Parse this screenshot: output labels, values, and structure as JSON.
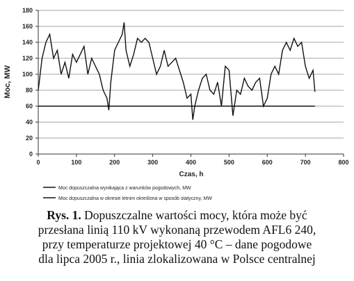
{
  "chart_data": {
    "type": "line",
    "xlabel": "Czas, h",
    "ylabel": "Moc, MW",
    "xlim": [
      0,
      800
    ],
    "xticks": [
      0,
      100,
      200,
      300,
      400,
      500,
      600,
      700,
      800
    ],
    "ylim": [
      0,
      180
    ],
    "yticks": [
      0,
      20,
      40,
      60,
      80,
      100,
      120,
      140,
      160,
      180
    ],
    "grid": true,
    "series": [
      {
        "name": "Moc dopuszczalna wynikająca z warunków pogodowych, MW",
        "color": "#111111",
        "x": [
          0,
          10,
          20,
          30,
          40,
          50,
          60,
          70,
          80,
          90,
          100,
          110,
          120,
          130,
          140,
          150,
          160,
          170,
          180,
          185,
          190,
          200,
          210,
          220,
          225,
          230,
          240,
          250,
          260,
          270,
          280,
          290,
          300,
          310,
          320,
          330,
          340,
          350,
          360,
          370,
          380,
          390,
          400,
          405,
          410,
          420,
          430,
          440,
          450,
          460,
          470,
          480,
          490,
          500,
          510,
          520,
          530,
          540,
          550,
          560,
          570,
          580,
          590,
          600,
          610,
          620,
          630,
          640,
          650,
          660,
          670,
          680,
          690,
          700,
          710,
          720,
          725
        ],
        "values": [
          80,
          120,
          140,
          150,
          120,
          130,
          100,
          115,
          95,
          125,
          115,
          125,
          135,
          100,
          120,
          110,
          100,
          80,
          70,
          55,
          90,
          130,
          140,
          150,
          165,
          130,
          110,
          125,
          145,
          140,
          145,
          140,
          120,
          100,
          110,
          130,
          110,
          115,
          120,
          105,
          90,
          70,
          75,
          43,
          60,
          80,
          95,
          100,
          80,
          75,
          90,
          60,
          110,
          105,
          48,
          80,
          75,
          95,
          85,
          80,
          90,
          95,
          60,
          70,
          100,
          110,
          100,
          130,
          140,
          130,
          145,
          135,
          140,
          110,
          95,
          105,
          78
        ]
      },
      {
        "name": "Moc dopuszczalna w okresie letnim określona w sposób statyczny, MW",
        "color": "#111111",
        "x": [
          0,
          725
        ],
        "values": [
          60,
          60
        ]
      }
    ]
  },
  "caption": {
    "label": "Rys. 1.",
    "lines": [
      "Dopuszczalne wartości mocy, która może być",
      "przesłana linią 110 kV wykonaną przewodem AFL6 240,",
      "przy temperaturze projektowej 40 °C  – dane pogodowe",
      "dla lipca 2005 r., linia zlokalizowana w Polsce centralnej"
    ]
  }
}
